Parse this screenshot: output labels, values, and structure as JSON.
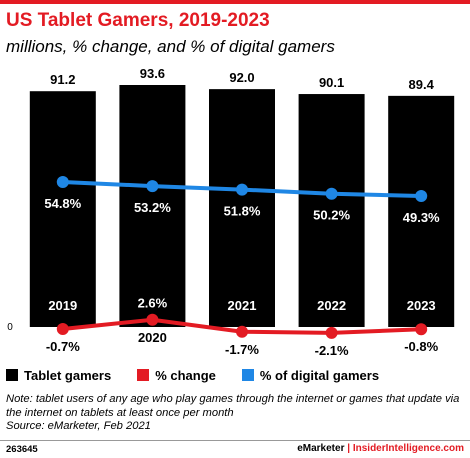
{
  "header": {
    "title": "US Tablet Gamers, 2019-2023",
    "subtitle": "millions, % change, and % of digital gamers"
  },
  "chart_data": {
    "type": "bar",
    "categories": [
      "2019",
      "2020",
      "2021",
      "2022",
      "2023"
    ],
    "series": [
      {
        "name": "Tablet gamers",
        "kind": "bar",
        "values": [
          91.2,
          93.6,
          92.0,
          90.1,
          89.4
        ],
        "labels": [
          "91.2",
          "93.6",
          "92.0",
          "90.1",
          "89.4"
        ],
        "color": "#000000"
      },
      {
        "name": "% change",
        "kind": "line",
        "values": [
          -0.7,
          2.6,
          -1.7,
          -2.1,
          -0.8
        ],
        "labels": [
          "-0.7%",
          "2.6%",
          "-1.7%",
          "-2.1%",
          "-0.8%"
        ],
        "color": "#e31b23"
      },
      {
        "name": "% of digital gamers",
        "kind": "line",
        "values": [
          54.8,
          53.2,
          51.8,
          50.2,
          49.3
        ],
        "labels": [
          "54.8%",
          "53.2%",
          "51.8%",
          "50.2%",
          "49.3%"
        ],
        "color": "#1f87e5"
      }
    ],
    "y_zero_label": "0",
    "ylim": [
      0,
      100
    ],
    "grid": false,
    "legend_position": "bottom"
  },
  "legend": [
    {
      "label": "Tablet gamers",
      "color": "#000000"
    },
    {
      "label": "% change",
      "color": "#e31b23"
    },
    {
      "label": "% of digital gamers",
      "color": "#1f87e5"
    }
  ],
  "note": {
    "line1": "Note: tablet users of any age who play games through the internet or games that update via",
    "line2": "the internet on tablets at least once per month",
    "source": "Source: eMarketer, Feb 2021"
  },
  "footer": {
    "id": "263645",
    "brand": "eMarketer",
    "separator": "|",
    "site": "InsiderIntelligence.com"
  }
}
